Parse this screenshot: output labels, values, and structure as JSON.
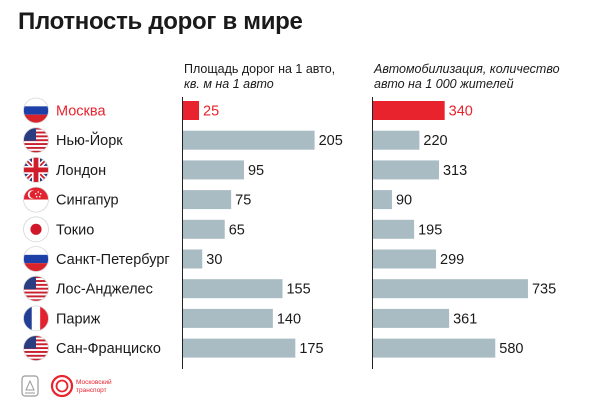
{
  "title": "Плотность дорог в мире",
  "headers": {
    "left": [
      "Площадь дорог на 1 авто,",
      "кв. м на 1 авто"
    ],
    "right": [
      "Автомобилизация, количество",
      "авто на 1 000 жителей"
    ]
  },
  "colors": {
    "highlight": "#e8232d",
    "bar": "#a9bcc4",
    "text": "#1a1a1a"
  },
  "chart_data": [
    {
      "type": "bar",
      "orientation": "horizontal",
      "title": "Площадь дорог на 1 авто, кв. м на 1 авто",
      "categories": [
        "Москва",
        "Нью-Йорк",
        "Лондон",
        "Сингапур",
        "Токио",
        "Санкт-Петербург",
        "Лос-Анджелес",
        "Париж",
        "Сан-Франциско"
      ],
      "values": [
        25,
        205,
        95,
        75,
        65,
        30,
        155,
        140,
        175
      ],
      "value_labels": [
        "25",
        "205",
        "95",
        "75",
        "65",
        "30",
        "155",
        "140",
        "175"
      ],
      "xlim": [
        0,
        215
      ],
      "highlight_index": 0,
      "grid": false
    },
    {
      "type": "bar",
      "orientation": "horizontal",
      "title": "Автомобилизация, количество авто на 1 000 жителей",
      "categories": [
        "Москва",
        "Нью-Йорк",
        "Лондон",
        "Сингапур",
        "Токио",
        "Санкт-Петербург",
        "Лос-Анджелес",
        "Париж",
        "Сан-Франциско"
      ],
      "values": [
        340,
        220,
        313,
        90,
        195,
        299,
        735,
        361,
        580
      ],
      "value_labels": [
        "340",
        "220",
        "313",
        "90",
        "195",
        "299",
        "735",
        "361",
        "580"
      ],
      "xlim": [
        0,
        740
      ],
      "highlight_index": 0,
      "grid": false
    }
  ],
  "flags": [
    "ru-flag-icon",
    "us-flag-icon",
    "uk-flag-icon",
    "sg-flag-icon",
    "jp-flag-icon",
    "ru-flag-icon",
    "us-flag-icon",
    "fr-flag-icon",
    "us-flag-icon"
  ],
  "footer": {
    "logo2": [
      "Московский",
      "транспорт"
    ]
  }
}
